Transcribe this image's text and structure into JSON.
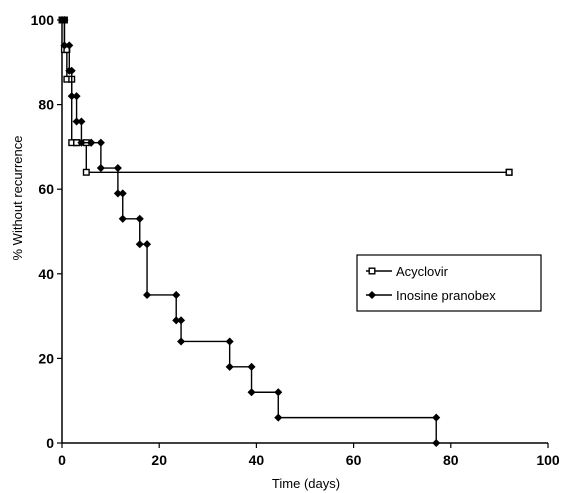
{
  "chart_data": {
    "type": "line",
    "step": true,
    "xlabel": "Time (days)",
    "ylabel": "% Without recurrence",
    "xlim": [
      0,
      100
    ],
    "ylim": [
      0,
      100
    ],
    "x_ticks": [
      0,
      20,
      40,
      60,
      80,
      100
    ],
    "y_ticks": [
      0,
      20,
      40,
      60,
      80,
      100
    ],
    "grid": false,
    "legend_position": "center-right",
    "series": [
      {
        "name": "Acyclovir",
        "marker": "square",
        "color": "#000000",
        "x": [
          0,
          0.5,
          1,
          2,
          3,
          5,
          92
        ],
        "y": [
          100,
          93,
          86,
          71,
          71,
          64,
          64
        ]
      },
      {
        "name": "Inosine pranobex",
        "marker": "diamond",
        "color": "#000000",
        "x": [
          0,
          0.5,
          1.5,
          2,
          3,
          4,
          6,
          8,
          11.5,
          12.5,
          16,
          17.5,
          23.5,
          24.5,
          34.5,
          39,
          44.5,
          77
        ],
        "y": [
          100,
          94,
          88,
          82,
          76,
          71,
          71,
          65,
          59,
          53,
          47,
          35,
          29,
          24,
          18,
          12,
          6,
          0
        ]
      }
    ]
  }
}
